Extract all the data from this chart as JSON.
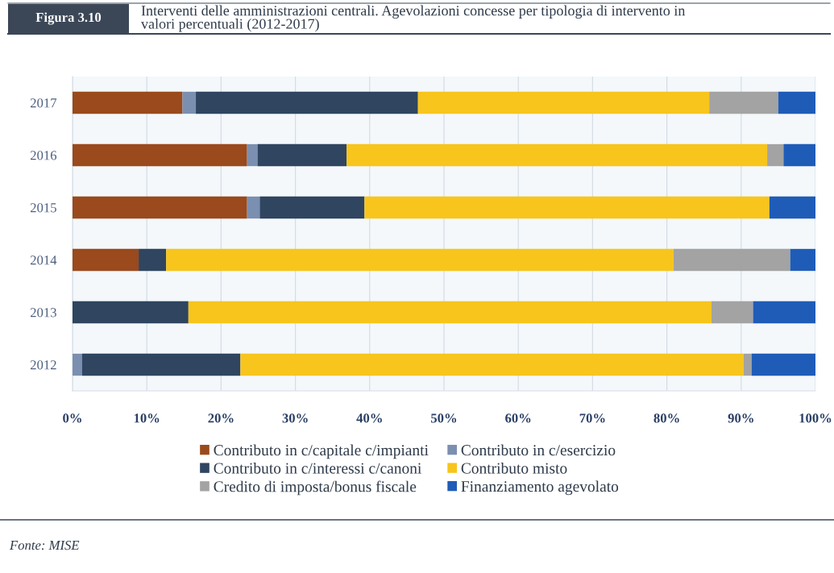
{
  "chart_data": {
    "type": "bar",
    "orientation": "horizontal",
    "stacked": true,
    "title": "Figura 3.10",
    "subtitle": "Interventi delle amministrazioni centrali. Agevolazioni concesse per tipologia di intervento in valori percentuali (2012-2017)",
    "categories": [
      "2017",
      "2016",
      "2015",
      "2014",
      "2013",
      "2012"
    ],
    "series": [
      {
        "name": "Contributo in c/capitale c/impianti",
        "color": "#9a4a1c",
        "values": [
          14.8,
          23.5,
          23.5,
          8.9,
          null,
          null
        ]
      },
      {
        "name": "Contributo in c/esercizio",
        "color": "#7b8fb0",
        "values": [
          1.8,
          1.4,
          1.7,
          null,
          null,
          1.3
        ]
      },
      {
        "name": "Contributo in c/interessi c/canoni",
        "color": "#2f4560",
        "values": [
          29.9,
          12.0,
          14.1,
          3.7,
          15.6,
          21.3
        ]
      },
      {
        "name": "Contributo misto",
        "color": "#f7c51c",
        "values": [
          39.2,
          56.6,
          54.5,
          68.3,
          70.4,
          67.7
        ]
      },
      {
        "name": "Credito di imposta/bonus fiscale",
        "color": "#a3a3a3",
        "values": [
          9.3,
          2.2,
          null,
          15.7,
          5.6,
          1.1
        ]
      },
      {
        "name": "Finanziamento agevolato",
        "color": "#1f5cb8",
        "values": [
          5.0,
          4.3,
          6.2,
          3.4,
          8.4,
          8.6
        ]
      }
    ],
    "xlim": [
      0,
      100
    ],
    "xticks": [
      {
        "value": 0,
        "label": "0%"
      },
      {
        "value": 10,
        "label": "10%"
      },
      {
        "value": 20,
        "label": "20%"
      },
      {
        "value": 30,
        "label": "30%"
      },
      {
        "value": 40,
        "label": "40%"
      },
      {
        "value": 50,
        "label": "50%"
      },
      {
        "value": 60,
        "label": "60%"
      },
      {
        "value": 70,
        "label": "70%"
      },
      {
        "value": 80,
        "label": "80%"
      },
      {
        "value": 90,
        "label": "90%"
      },
      {
        "value": 100,
        "label": "100%"
      }
    ],
    "grid": "x",
    "legend": "bottom",
    "annotations": [
      "Fonte: MISE"
    ]
  }
}
